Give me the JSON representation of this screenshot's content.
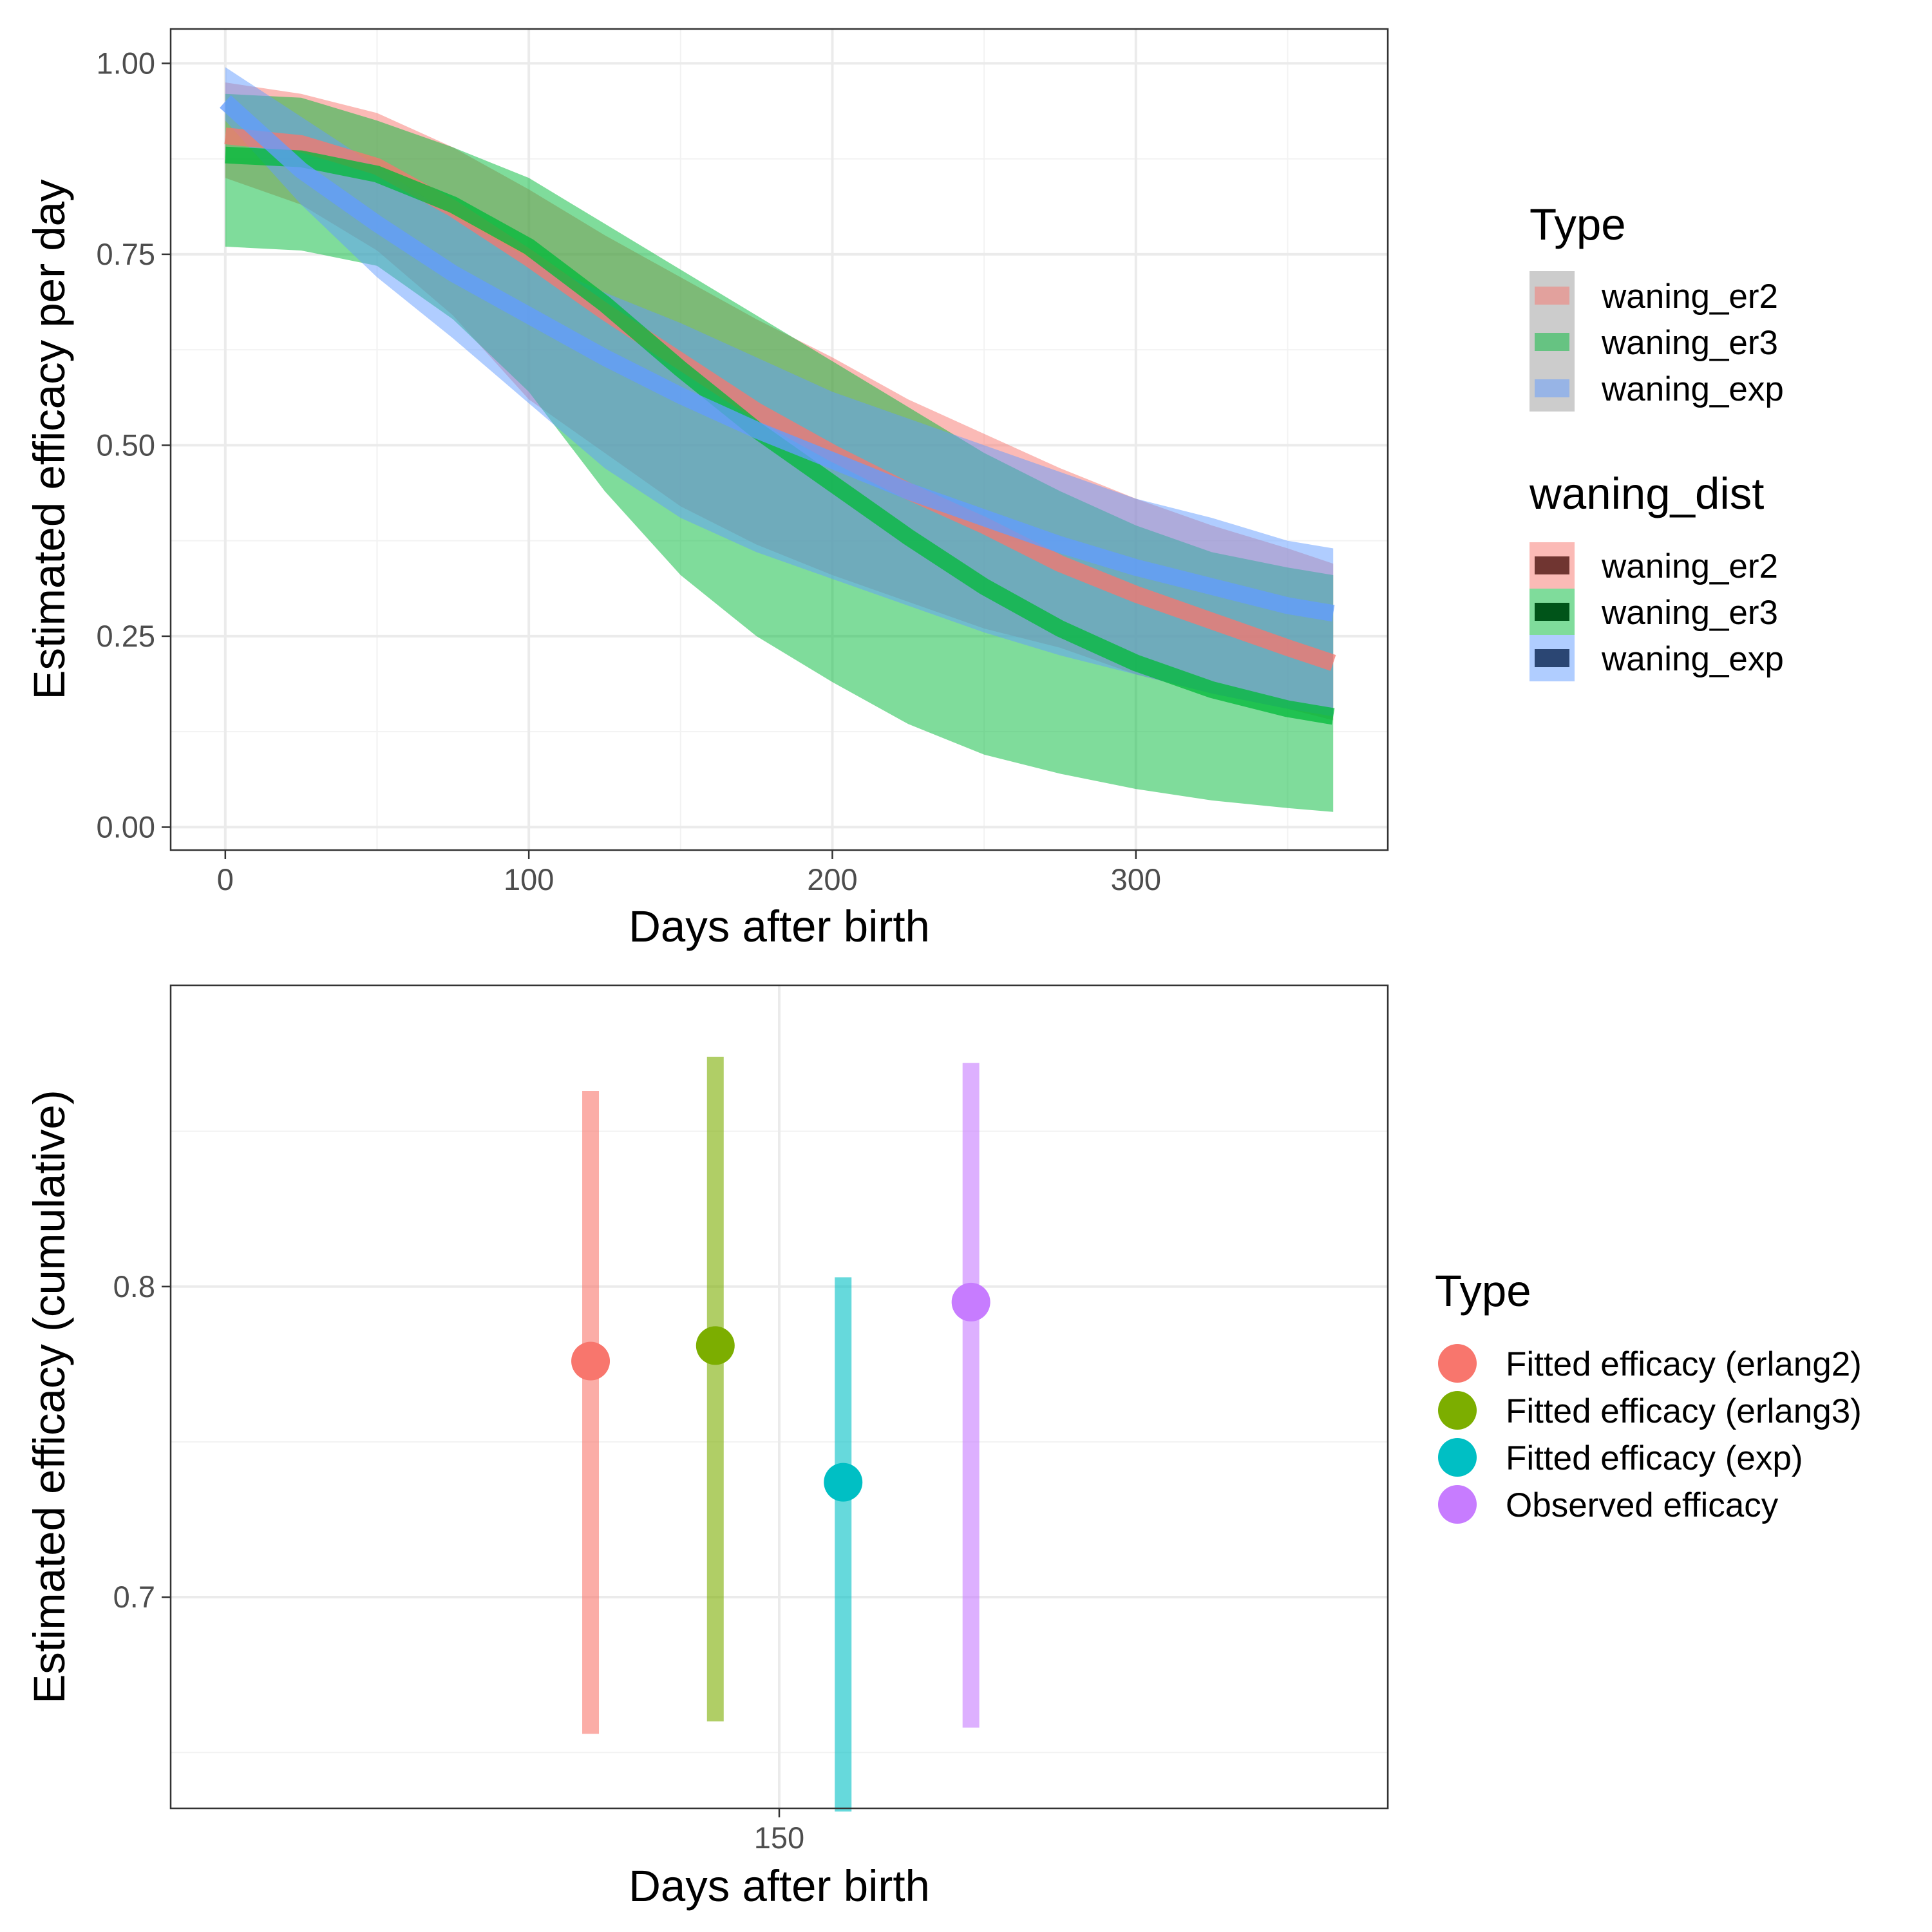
{
  "chart_data": [
    {
      "type": "line",
      "xlabel": "Days after birth",
      "ylabel": "Estimated efficacy per day",
      "xlim": [
        -18,
        383
      ],
      "ylim": [
        -0.03,
        1.045
      ],
      "xticks": [
        0,
        100,
        200,
        300
      ],
      "xtick_labels": [
        "0",
        "100",
        "200",
        "300"
      ],
      "yticks": [
        0,
        0.25,
        0.5,
        0.75,
        1
      ],
      "ytick_labels": [
        "0.00",
        "0.25",
        "0.50",
        "0.75",
        "1.00"
      ],
      "grid": true,
      "legends": [
        {
          "title": "Type",
          "placement": "right",
          "entries": [
            {
              "label": "waning_er2",
              "color": "#F8766D"
            },
            {
              "label": "waning_er3",
              "color": "#00BA38"
            },
            {
              "label": "waning_exp",
              "color": "#619CFF"
            }
          ]
        },
        {
          "title": "waning_dist",
          "placement": "right",
          "entries": [
            {
              "label": "waning_er2",
              "color": "#F8766D"
            },
            {
              "label": "waning_er3",
              "color": "#00BA38"
            },
            {
              "label": "waning_exp",
              "color": "#619CFF"
            }
          ]
        }
      ],
      "series": [
        {
          "name": "waning_er2",
          "color": "#F8766D",
          "x": [
            0,
            25,
            50,
            75,
            100,
            125,
            150,
            175,
            200,
            225,
            250,
            275,
            300,
            325,
            350,
            365
          ],
          "y": [
            0.905,
            0.895,
            0.865,
            0.81,
            0.745,
            0.675,
            0.61,
            0.545,
            0.49,
            0.44,
            0.395,
            0.345,
            0.305,
            0.27,
            0.235,
            0.215
          ],
          "lower": [
            0.85,
            0.815,
            0.755,
            0.67,
            0.56,
            0.49,
            0.42,
            0.37,
            0.33,
            0.295,
            0.26,
            0.235,
            0.2,
            0.175,
            0.155,
            0.14
          ],
          "upper": [
            0.975,
            0.96,
            0.935,
            0.89,
            0.835,
            0.775,
            0.72,
            0.665,
            0.615,
            0.56,
            0.515,
            0.47,
            0.43,
            0.395,
            0.365,
            0.345
          ]
        },
        {
          "name": "waning_er3",
          "color": "#00BA38",
          "x": [
            0,
            25,
            50,
            75,
            100,
            125,
            150,
            175,
            200,
            225,
            250,
            275,
            300,
            325,
            350,
            365
          ],
          "y": [
            0.88,
            0.875,
            0.855,
            0.815,
            0.76,
            0.685,
            0.6,
            0.52,
            0.45,
            0.38,
            0.315,
            0.26,
            0.215,
            0.18,
            0.155,
            0.145
          ],
          "lower": [
            0.76,
            0.755,
            0.735,
            0.665,
            0.57,
            0.44,
            0.33,
            0.25,
            0.19,
            0.135,
            0.095,
            0.07,
            0.05,
            0.035,
            0.025,
            0.02
          ],
          "upper": [
            0.96,
            0.955,
            0.925,
            0.89,
            0.85,
            0.79,
            0.73,
            0.67,
            0.61,
            0.55,
            0.49,
            0.44,
            0.395,
            0.36,
            0.34,
            0.33
          ]
        },
        {
          "name": "waning_exp",
          "color": "#619CFF",
          "x": [
            0,
            25,
            50,
            75,
            100,
            125,
            150,
            175,
            200,
            225,
            250,
            275,
            300,
            325,
            350,
            365
          ],
          "y": [
            0.95,
            0.86,
            0.79,
            0.725,
            0.67,
            0.615,
            0.565,
            0.52,
            0.48,
            0.44,
            0.405,
            0.37,
            0.34,
            0.315,
            0.29,
            0.28
          ],
          "lower": [
            0.925,
            0.815,
            0.72,
            0.64,
            0.555,
            0.47,
            0.405,
            0.36,
            0.325,
            0.29,
            0.255,
            0.225,
            0.2,
            0.175,
            0.155,
            0.145
          ],
          "upper": [
            0.995,
            0.93,
            0.865,
            0.8,
            0.745,
            0.7,
            0.66,
            0.615,
            0.57,
            0.535,
            0.5,
            0.465,
            0.43,
            0.405,
            0.375,
            0.365
          ]
        }
      ]
    },
    {
      "type": "scatter",
      "subtype": "pointrange",
      "xlabel": "Days after birth",
      "ylabel": "Estimated efficacy (cumulative)",
      "xlim": [
        130,
        170
      ],
      "ylim": [
        0.632,
        0.897
      ],
      "xticks": [
        150
      ],
      "xtick_labels": [
        "150"
      ],
      "yticks": [
        0.7,
        0.8
      ],
      "ytick_labels": [
        "0.7",
        "0.8"
      ],
      "grid": true,
      "legend": {
        "title": "Type",
        "placement": "right"
      },
      "series": [
        {
          "name": "Fitted efficacy (erlang2)",
          "color": "#F8766D",
          "x": 143.8,
          "y": 0.776,
          "lower": 0.656,
          "upper": 0.863
        },
        {
          "name": "Fitted efficacy (erlang3)",
          "color": "#7CAE00",
          "x": 147.9,
          "y": 0.781,
          "lower": 0.66,
          "upper": 0.874
        },
        {
          "name": "Fitted efficacy (exp)",
          "color": "#00BFC4",
          "x": 152.1,
          "y": 0.737,
          "lower": 0.631,
          "upper": 0.803
        },
        {
          "name": "Observed efficacy",
          "color": "#C77CFF",
          "x": 156.3,
          "y": 0.795,
          "lower": 0.658,
          "upper": 0.872
        }
      ]
    }
  ]
}
